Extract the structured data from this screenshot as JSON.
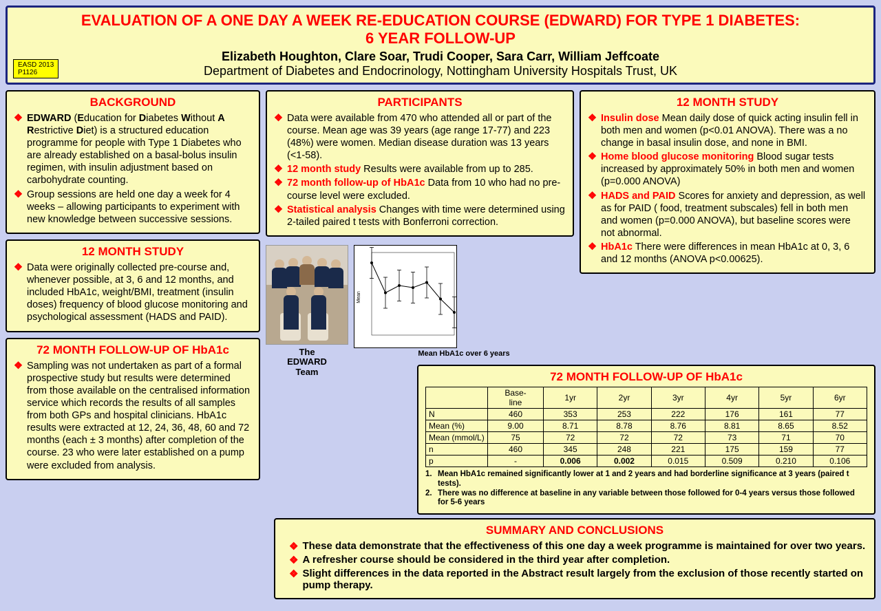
{
  "header": {
    "title_l1": "EVALUATION OF A ONE DAY A WEEK RE-EDUCATION COURSE (EDWARD) FOR TYPE 1 DIABETES:",
    "title_l2": "6 YEAR FOLLOW-UP",
    "authors": "Elizabeth Houghton, Clare Soar, Trudi Cooper, Sara Carr, William Jeffcoate",
    "dept": "Department of Diabetes and Endocrinology, Nottingham University Hospitals Trust, UK",
    "badge_l1": "EASD 2013",
    "badge_l2": "P1126"
  },
  "background": {
    "title": "BACKGROUND",
    "b1": "EDWARD (Education for Diabetes Without A Restrictive Diet) is a structured education programme for people with Type 1 Diabetes who are already established on a basal-bolus insulin regimen, with insulin adjustment based on carbohydrate counting.",
    "b2": "Group sessions are held one day a week for 4 weeks – allowing participants to experiment with new knowledge between successive sessions."
  },
  "study12a": {
    "title": "12 MONTH STUDY",
    "b1": "Data were originally collected pre-course and, whenever possible, at  3, 6 and 12 months, and included HbA1c, weight/BMI, treatment (insulin doses) frequency of blood glucose monitoring and psychological assessment (HADS and PAID)."
  },
  "followup72a": {
    "title": "72 MONTH FOLLOW-UP OF HbA1c",
    "b1": "Sampling was not undertaken as part of a formal prospective study but results were determined from those available on the centralised information service which records the results of all samples from both GPs and hospital clinicians. HbA1c results were extracted at 12, 24, 36, 48, 60 and 72 months (each ± 3 months) after completion of the course. 23 who were later established on a pump were excluded from analysis."
  },
  "participants": {
    "title": "PARTICIPANTS",
    "b1": "Data were available from 470 who attended all or part of the course. Mean age  was 39 years (age range 17-77) and 223 (48%) were women. Median disease duration was 13 years (<1-58).",
    "b2_lead": "12 month study",
    "b2": " Results were available from up to 285.",
    "b3_lead": "72 month follow-up of HbA1c",
    "b3": " Data from 10 who had no pre-course level were excluded.",
    "b4_lead": "Statistical analysis",
    "b4": " Changes with time were determined using 2-tailed paired t tests with Bonferroni correction."
  },
  "study12b": {
    "title": "12 MONTH STUDY",
    "b1_lead": "Insulin dose",
    "b1": " Mean daily dose of quick acting insulin fell in both men and women (p<0.01 ANOVA).  There was a no change in basal insulin dose, and none in BMI.",
    "b2_lead": "Home blood glucose monitoring",
    "b2": " Blood sugar tests increased by approximately 50% in both men and women (p=0.000 ANOVA)",
    "b3_lead": "HADS and PAID",
    "b3": " Scores for anxiety and depression, as well as for PAID ( food, treatment subscales) fell in both men and women (p=0.000 ANOVA), but baseline scores were not abnormal.",
    "b4_lead": "HbA1c",
    "b4": " There were differences in mean HbA1c at 0, 3, 6 and 12 months (ANOVA p<0.00625)."
  },
  "team": {
    "caption_l1": "The",
    "caption_l2": "EDWARD",
    "caption_l3": "Team"
  },
  "chart": {
    "caption": "Mean HbA1c over 6 years",
    "xvals": [
      0,
      1,
      2,
      3,
      4,
      5,
      6
    ],
    "yvals": [
      9.0,
      8.71,
      8.78,
      8.76,
      8.81,
      8.65,
      8.52
    ],
    "ylim": [
      8.3,
      9.1
    ],
    "errbar": 0.15
  },
  "table72": {
    "title": "72 MONTH FOLLOW-UP OF HbA1c",
    "cols": [
      "",
      "Base-line",
      "1yr",
      "2yr",
      "3yr",
      "4yr",
      "5yr",
      "6yr"
    ],
    "rows": [
      [
        "N",
        "460",
        "353",
        "253",
        "222",
        "176",
        "161",
        "77"
      ],
      [
        "Mean (%)",
        "9.00",
        "8.71",
        "8.78",
        "8.76",
        "8.81",
        "8.65",
        "8.52"
      ],
      [
        "Mean (mmol/L)",
        "75",
        "72",
        "72",
        "72",
        "73",
        "71",
        "70"
      ],
      [
        "n",
        "460",
        "345",
        "248",
        "221",
        "175",
        "159",
        "77"
      ],
      [
        "p",
        "-",
        "0.006",
        "0.002",
        "0.015",
        "0.509",
        "0.210",
        "0.106"
      ]
    ],
    "note1": "Mean HbA1c remained significantly lower at 1 and 2 years and  had borderline significance at 3 years  (paired t tests).",
    "note2": "There was no difference at baseline in any  variable  between those followed for 0-4 years versus those followed for 5-6 years"
  },
  "summary": {
    "title": "SUMMARY AND CONCLUSIONS",
    "b1": "These data demonstrate that the effectiveness of this one day a week programme is maintained for over  two years.",
    "b2": "A refresher course should be considered in the third year after completion.",
    "b3": "Slight differences in the data reported in the Abstract result largely from the  exclusion of those recently started on pump therapy."
  }
}
